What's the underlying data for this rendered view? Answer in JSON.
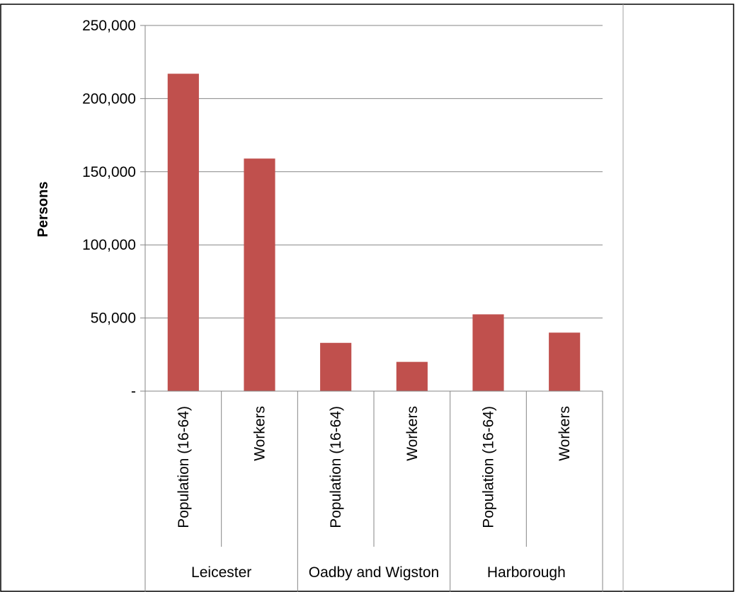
{
  "chart_data": {
    "type": "bar",
    "title": "",
    "xlabel": "",
    "ylabel": "Persons",
    "ylim": [
      0,
      250000
    ],
    "yticks": [
      0,
      50000,
      100000,
      150000,
      200000,
      250000
    ],
    "ytick_labels": [
      "-",
      "50,000",
      "100,000",
      "150,000",
      "200,000",
      "250,000"
    ],
    "grid": true,
    "legend": "none",
    "bar_color": "#C0504D",
    "groups": [
      {
        "name": "Leicester",
        "categories": [
          "Population (16-64)",
          "Workers"
        ],
        "values": [
          217000,
          159000
        ]
      },
      {
        "name": "Oadby and Wigston",
        "categories": [
          "Population (16-64)",
          "Workers"
        ],
        "values": [
          33000,
          20000
        ]
      },
      {
        "name": "Harborough",
        "categories": [
          "Population (16-64)",
          "Workers"
        ],
        "values": [
          52500,
          40000
        ]
      }
    ]
  }
}
